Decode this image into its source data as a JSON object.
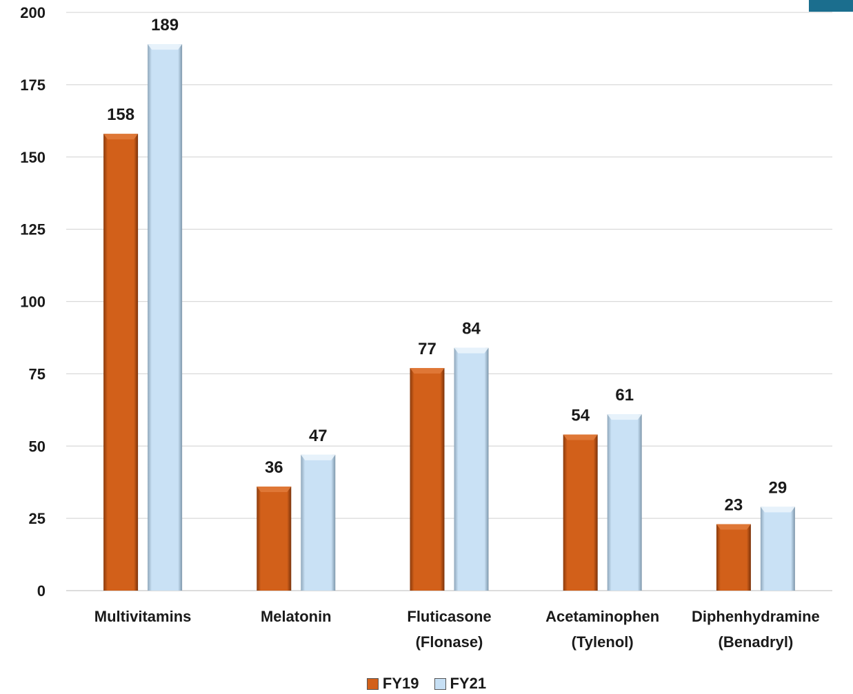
{
  "chart_data": {
    "type": "bar",
    "categories": [
      [
        "Multivitamins"
      ],
      [
        "Melatonin"
      ],
      [
        "Fluticasone",
        "(Flonase)"
      ],
      [
        "Acetaminophen",
        "(Tylenol)"
      ],
      [
        "Diphenhydramine",
        "(Benadryl)"
      ]
    ],
    "series": [
      {
        "name": "FY19",
        "values": [
          158,
          36,
          77,
          54,
          23
        ],
        "color": "#d2601a"
      },
      {
        "name": "FY21",
        "values": [
          189,
          47,
          84,
          61,
          29
        ],
        "color": "#c6dff4"
      }
    ],
    "ylim": [
      0,
      200
    ],
    "yticks": [
      0,
      25,
      50,
      75,
      100,
      125,
      150,
      175,
      200
    ],
    "grid": true,
    "legend_position": "bottom-center",
    "accent_color": "#1b6e8e"
  }
}
